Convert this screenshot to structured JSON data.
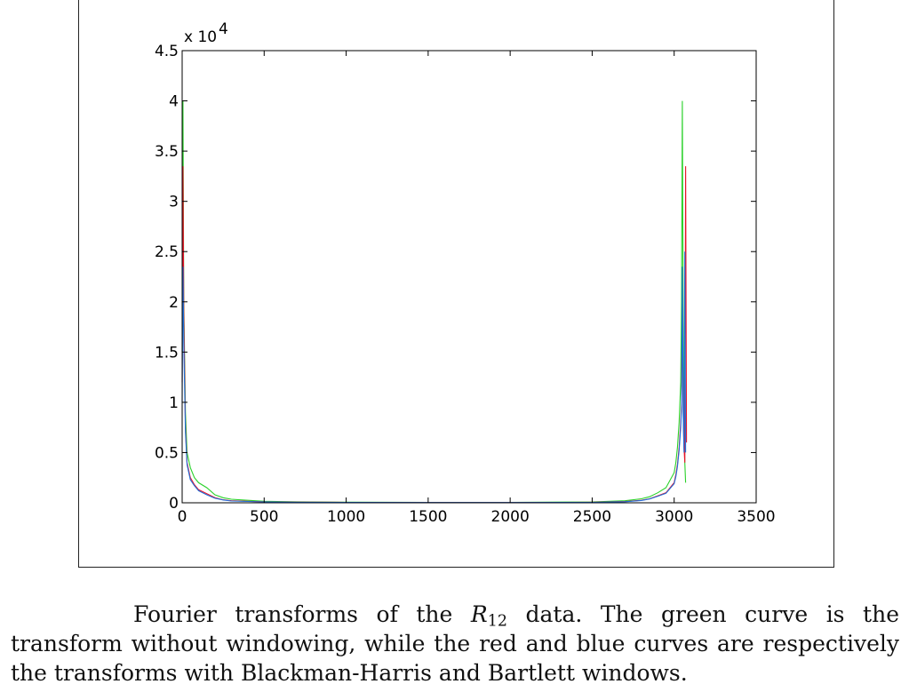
{
  "chart_data": {
    "type": "line",
    "title": "",
    "xlabel": "",
    "ylabel": "",
    "xlim": [
      0,
      3500
    ],
    "ylim": [
      0,
      45000
    ],
    "x_ticks": [
      0,
      500,
      1000,
      1500,
      2000,
      2500,
      3000,
      3500
    ],
    "y_ticks": [
      0,
      0.5,
      1,
      1.5,
      2,
      2.5,
      3,
      3.5,
      4,
      4.5
    ],
    "y_multiplier_label": "x 10",
    "y_multiplier_exponent": "4",
    "grid": false,
    "series": [
      {
        "color": "#2ad12a",
        "x": [
          0,
          5,
          10,
          20,
          30,
          50,
          75,
          100,
          150,
          200,
          250,
          300,
          400,
          500,
          700,
          1000,
          1500,
          2000,
          2500,
          2700,
          2800,
          2850,
          2900,
          2950,
          3000,
          3010,
          3020,
          3030,
          3040,
          3045,
          3050,
          3055,
          3060,
          3065,
          3070
        ],
        "y": [
          15000,
          40000,
          20000,
          9000,
          5000,
          3500,
          2500,
          2000,
          1500,
          800,
          500,
          350,
          250,
          150,
          100,
          60,
          40,
          40,
          80,
          200,
          400,
          600,
          1000,
          1500,
          3000,
          4000,
          5500,
          8000,
          12000,
          20000,
          40000,
          18000,
          9000,
          4000,
          2000
        ]
      },
      {
        "color": "#e8132a",
        "x": [
          0,
          5,
          10,
          20,
          30,
          50,
          75,
          100,
          150,
          200,
          250,
          300,
          400,
          500,
          700,
          1000,
          1500,
          2000,
          2500,
          2700,
          2800,
          2850,
          2900,
          2950,
          3000,
          3010,
          3020,
          3030,
          3040,
          3045,
          3050,
          3055,
          3060,
          3065,
          3070,
          3075
        ],
        "y": [
          12000,
          33500,
          19000,
          7500,
          4000,
          2500,
          1800,
          1300,
          900,
          500,
          300,
          200,
          150,
          100,
          60,
          40,
          30,
          30,
          50,
          120,
          250,
          400,
          700,
          1000,
          2000,
          2800,
          3800,
          5500,
          8000,
          10000,
          19500,
          9000,
          5500,
          4000,
          33500,
          6000
        ]
      },
      {
        "color": "#1e6fd9",
        "x": [
          0,
          5,
          10,
          20,
          30,
          50,
          75,
          100,
          150,
          200,
          250,
          300,
          400,
          500,
          700,
          1000,
          1500,
          2000,
          2500,
          2700,
          2800,
          2850,
          2900,
          2950,
          3000,
          3010,
          3020,
          3030,
          3040,
          3045,
          3050,
          3055,
          3060,
          3065,
          3070
        ],
        "y": [
          10000,
          23500,
          16000,
          7000,
          3800,
          2300,
          1700,
          1200,
          800,
          450,
          280,
          180,
          130,
          90,
          50,
          35,
          25,
          25,
          45,
          110,
          230,
          380,
          650,
          950,
          1900,
          2600,
          3600,
          5200,
          7500,
          9500,
          23500,
          8500,
          5000,
          25000,
          5000
        ]
      }
    ]
  },
  "caption": {
    "pre": "Fourier transforms of the ",
    "var": "R",
    "sub": "12",
    "post": " data. The green curve is the transform without windowing, while the red and blue curves are respectively the transforms with Blackman-Harris and Bartlett windows."
  }
}
